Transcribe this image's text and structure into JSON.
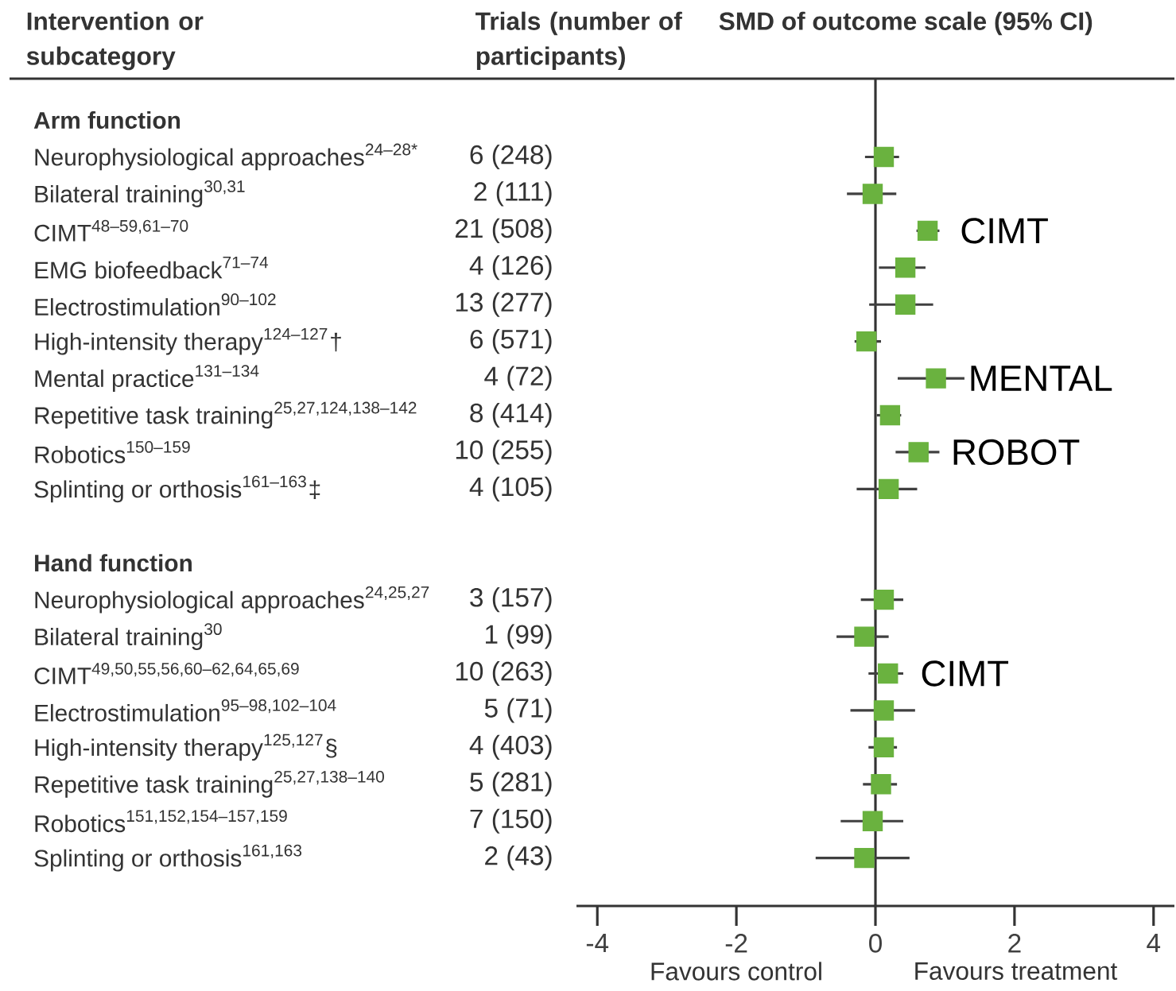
{
  "chart_data": {
    "type": "scatter",
    "orientation": "horizontal",
    "title": "SMD of outcome scale (95% CI)",
    "ylabel": "Intervention or subcategory",
    "categories": [
      "Arm function",
      "\\text{Neurophysiological approaches}^{\\text{24–28*}}",
      "\\text{Bilateral training}^{\\text{30,31}}",
      "\\text{CIMT}^{\\text{48–59,61–70}}",
      "\\text{EMG biofeedback}^{\\text{71–74}}",
      "\\text{Electrostimulation}^{\\text{90–102}}",
      "\\text{High-intensity therapy}^{\\text{124–127}}\\text{†}",
      "\\text{Mental practice}^{\\text{131–134}}",
      "\\text{Repetitive task training}^{\\text{25,27,124,138–142}}",
      "\\text{Robotics}^{\\text{150–159}}",
      "\\text{Splinting or orthosis}^{\\text{161–163}}\\text{‡}",
      null,
      "Hand function",
      "\\text{Neurophysiological approaches}^{\\text{24,25,27}}",
      "\\text{Bilateral training}^{\\text{30}}",
      "\\text{CIMT}^{\\text{49,50,55,56,60–62,64,65,69}}",
      "\\text{Electrostimulation}^{\\text{95–98,102–104}}",
      "\\text{High-intensity therapy}^{\\text{125,127}}\\text{§}",
      "\\text{Repetitive task training}^{\\text{25,27,138–140}}",
      "\\text{Robotics}^{\\text{151,152,154–157,159}}",
      "\\text{Splinting or orthosis}^{\\text{161,163}}"
    ],
    "series": [
      {
        "color": "#6ab23f",
        "values": [
          null,
          0.12,
          -0.04,
          0.75,
          0.43,
          0.43,
          -0.13,
          0.87,
          0.21,
          0.62,
          0.19,
          null,
          null,
          0.12,
          -0.16,
          0.18,
          0.12,
          0.12,
          0.08,
          -0.04,
          -0.16
        ],
        "errors": [
          null,
          [
            -0.15,
            0.34
          ],
          [
            -0.41,
            0.3
          ],
          [
            0.59,
            0.92
          ],
          [
            0.05,
            0.72
          ],
          [
            -0.09,
            0.83
          ],
          [
            -0.3,
            0.08
          ],
          [
            0.32,
            1.28
          ],
          [
            0.02,
            0.37
          ],
          [
            0.29,
            0.92
          ],
          [
            -0.27,
            0.6
          ],
          null,
          null,
          [
            -0.21,
            0.4
          ],
          [
            -0.56,
            0.19
          ],
          [
            -0.1,
            0.4
          ],
          [
            -0.36,
            0.57
          ],
          [
            -0.1,
            0.31
          ],
          [
            -0.18,
            0.31
          ],
          [
            -0.5,
            0.4
          ],
          [
            -0.86,
            0.49
          ]
        ]
      }
    ],
    "xlim": [
      -4.3,
      4.3
    ],
    "xticks": [
      -4,
      -2,
      0,
      2,
      4
    ],
    "marker": "square",
    "ref_lines": [
      {
        "axis": "x",
        "value": 0,
        "color": "#333333"
      }
    ],
    "annotations": [
      "Trials (number of participants)",
      "6 (248)",
      "2 (111)",
      "21 (508)",
      "4 (126)",
      "13 (277)",
      "6 (571)",
      "4 (72)",
      "8 (414)",
      "10 (255)",
      "4 (105)",
      "3 (157)",
      "1 (99)",
      "10 (263)",
      "5 (71)",
      "4 (403)",
      "5 (281)",
      "7 (150)",
      "2 (43)",
      "Favours control",
      "Favours treatment",
      {
        "text": "CIMT",
        "x": 0.75,
        "y": "\\text{CIMT}^{\\text{48–59,61–70}}"
      },
      {
        "text": "MENTAL",
        "x": 0.87,
        "y": "\\text{Mental practice}^{\\text{131–134}}"
      },
      {
        "text": "ROBOT",
        "x": 0.62,
        "y": "\\text{Robotics}^{\\text{150–159}}"
      },
      {
        "text": "CIMT",
        "x": 0.18,
        "y": "\\text{CIMT}^{\\text{49,50,55,56,60–62,64,65,69}}"
      }
    ]
  }
}
